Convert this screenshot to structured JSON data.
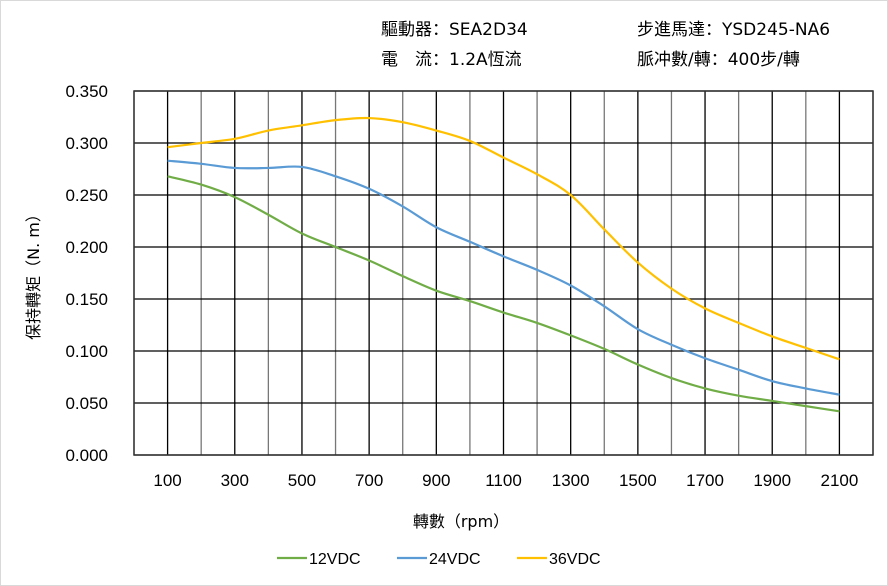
{
  "header": {
    "driver": "驅動器：SEA2D34",
    "motor": "步進馬達：YSD245-NA6",
    "current": "電　流：1.2A恆流",
    "pulses": "脈冲數/轉：400步/轉"
  },
  "chart_data": {
    "type": "line",
    "title": "",
    "xlabel": "轉數（rpm）",
    "ylabel": "保持轉矩（N. m）",
    "xlim": [
      0,
      2200
    ],
    "ylim": [
      0,
      0.35
    ],
    "grid": true,
    "legend_position": "bottom",
    "x_ticks": [
      "100",
      "300",
      "500",
      "700",
      "900",
      "1100",
      "1300",
      "1500",
      "1700",
      "1900",
      "2100"
    ],
    "y_ticks": [
      "0.000",
      "0.050",
      "0.100",
      "0.150",
      "0.200",
      "0.250",
      "0.300",
      "0.350"
    ],
    "x": [
      100,
      200,
      300,
      400,
      500,
      600,
      700,
      800,
      900,
      1000,
      1100,
      1200,
      1300,
      1400,
      1500,
      1600,
      1700,
      1800,
      1900,
      2000,
      2100
    ],
    "series": [
      {
        "name": "12VDC",
        "color": "#70ad47",
        "values": [
          0.268,
          0.26,
          0.248,
          0.231,
          0.213,
          0.2,
          0.187,
          0.172,
          0.158,
          0.148,
          0.137,
          0.127,
          0.115,
          0.102,
          0.087,
          0.074,
          0.064,
          0.057,
          0.052,
          0.047,
          0.042
        ]
      },
      {
        "name": "24VDC",
        "color": "#5b9bd5",
        "values": [
          0.283,
          0.28,
          0.276,
          0.276,
          0.277,
          0.268,
          0.256,
          0.239,
          0.219,
          0.205,
          0.191,
          0.178,
          0.163,
          0.143,
          0.121,
          0.106,
          0.093,
          0.082,
          0.071,
          0.064,
          0.058
        ]
      },
      {
        "name": "36VDC",
        "color": "#ffc000",
        "values": [
          0.296,
          0.3,
          0.304,
          0.312,
          0.317,
          0.322,
          0.324,
          0.32,
          0.312,
          0.302,
          0.286,
          0.27,
          0.25,
          0.217,
          0.185,
          0.16,
          0.141,
          0.127,
          0.114,
          0.103,
          0.092
        ]
      }
    ]
  }
}
